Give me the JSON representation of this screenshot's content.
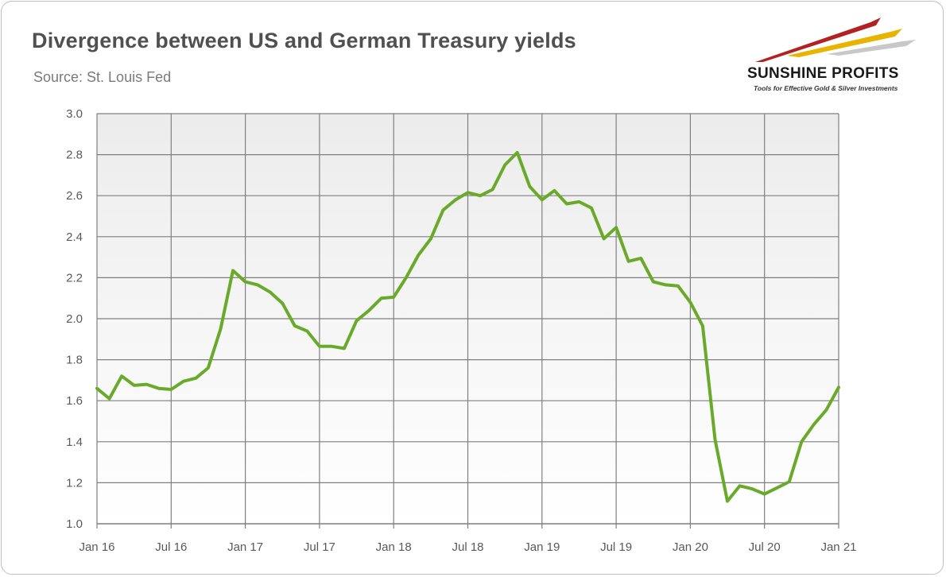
{
  "header": {
    "title": "Divergence between US and German Treasury yields",
    "subtitle": "Source: St. Louis Fed"
  },
  "logo": {
    "name": "SUNSHINE PROFITS",
    "tagline": "Tools for Effective Gold & Silver Investments",
    "colors": [
      "#b22222",
      "#e8b400",
      "#c8c8c8"
    ]
  },
  "colors": {
    "line": "#6aaa2a",
    "grid": "#7f7f7f",
    "plot_top": "#ececec",
    "plot_bottom": "#ffffff"
  },
  "chart_data": {
    "type": "line",
    "title": "Divergence between US and German Treasury yields",
    "xlabel": "",
    "ylabel": "",
    "ylim": [
      1.0,
      3.0
    ],
    "yticks": [
      "1.0",
      "1.2",
      "1.4",
      "1.6",
      "1.8",
      "2.0",
      "2.2",
      "2.4",
      "2.6",
      "2.8",
      "3.0"
    ],
    "xticks": [
      "Jan 16",
      "Jul 16",
      "Jan 17",
      "Jul 17",
      "Jan 18",
      "Jul 18",
      "Jan 19",
      "Jul 19",
      "Jan 20",
      "Jul 20",
      "Jan 21"
    ],
    "grid": true,
    "legend": "none",
    "x": [
      "2016-01",
      "2016-02",
      "2016-03",
      "2016-04",
      "2016-05",
      "2016-06",
      "2016-07",
      "2016-08",
      "2016-09",
      "2016-10",
      "2016-11",
      "2016-12",
      "2017-01",
      "2017-02",
      "2017-03",
      "2017-04",
      "2017-05",
      "2017-06",
      "2017-07",
      "2017-08",
      "2017-09",
      "2017-10",
      "2017-11",
      "2017-12",
      "2018-01",
      "2018-02",
      "2018-03",
      "2018-04",
      "2018-05",
      "2018-06",
      "2018-07",
      "2018-08",
      "2018-09",
      "2018-10",
      "2018-11",
      "2018-12",
      "2019-01",
      "2019-02",
      "2019-03",
      "2019-04",
      "2019-05",
      "2019-06",
      "2019-07",
      "2019-08",
      "2019-09",
      "2019-10",
      "2019-11",
      "2019-12",
      "2020-01",
      "2020-02",
      "2020-03",
      "2020-04",
      "2020-05",
      "2020-06",
      "2020-07",
      "2020-08",
      "2020-09",
      "2020-10",
      "2020-11",
      "2020-12",
      "2021-01"
    ],
    "series": [
      {
        "values": [
          1.66,
          1.61,
          1.72,
          1.675,
          1.68,
          1.66,
          1.655,
          1.695,
          1.71,
          1.76,
          1.95,
          2.235,
          2.18,
          2.165,
          2.13,
          2.075,
          1.965,
          1.94,
          1.865,
          1.865,
          1.855,
          1.99,
          2.04,
          2.1,
          2.105,
          2.2,
          2.31,
          2.39,
          2.53,
          2.58,
          2.615,
          2.6,
          2.63,
          2.75,
          2.81,
          2.645,
          2.58,
          2.625,
          2.56,
          2.57,
          2.54,
          2.39,
          2.445,
          2.28,
          2.295,
          2.18,
          2.165,
          2.16,
          2.08,
          1.965,
          1.41,
          1.11,
          1.185,
          1.17,
          1.145,
          1.175,
          1.205,
          1.4,
          1.485,
          1.555,
          1.665
        ]
      }
    ]
  }
}
